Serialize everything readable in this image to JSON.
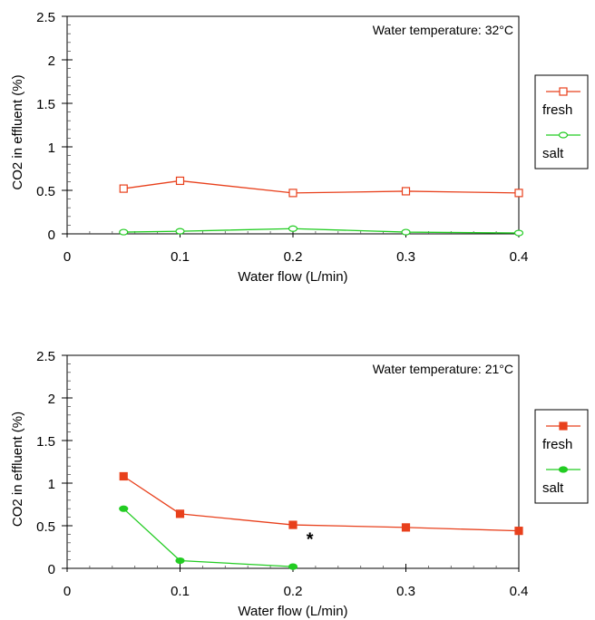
{
  "chart_data": [
    {
      "type": "line",
      "annotation": "Water temperature: 32°C",
      "xlabel": "Water flow (L/min)",
      "ylabel": "CO2 in effluent (%)",
      "xlim": [
        0,
        0.4
      ],
      "ylim": [
        0,
        2.5
      ],
      "xticks": [
        "0",
        "0.1",
        "0.2",
        "0.3",
        "0.4"
      ],
      "yticks": [
        "0",
        "0.5",
        "1",
        "1.5",
        "2",
        "2.5"
      ],
      "x": [
        0.05,
        0.1,
        0.2,
        0.3,
        0.4
      ],
      "marker_fill": "open",
      "legend_position": "right",
      "series": [
        {
          "name": "fresh",
          "color": "#e8401c",
          "values": [
            0.52,
            0.61,
            0.47,
            0.49,
            0.47
          ]
        },
        {
          "name": "salt",
          "color": "#22cc22",
          "values": [
            0.02,
            0.03,
            0.06,
            0.02,
            0.01
          ]
        }
      ],
      "note": ""
    },
    {
      "type": "line",
      "annotation": "Water temperature: 21°C",
      "xlabel": "Water flow (L/min)",
      "ylabel": "CO2 in effluent (%)",
      "xlim": [
        0,
        0.4
      ],
      "ylim": [
        0,
        2.5
      ],
      "xticks": [
        "0",
        "0.1",
        "0.2",
        "0.3",
        "0.4"
      ],
      "yticks": [
        "0",
        "0.5",
        "1",
        "1.5",
        "2",
        "2.5"
      ],
      "x": [
        0.05,
        0.1,
        0.2,
        0.3,
        0.4
      ],
      "marker_fill": "filled",
      "legend_position": "right",
      "series": [
        {
          "name": "fresh",
          "color": "#e8401c",
          "values": [
            1.08,
            0.64,
            0.51,
            0.48,
            0.44
          ]
        },
        {
          "name": "salt",
          "color": "#22cc22",
          "values": [
            0.7,
            0.09,
            0.02,
            null,
            null
          ]
        }
      ],
      "note": "*"
    }
  ]
}
